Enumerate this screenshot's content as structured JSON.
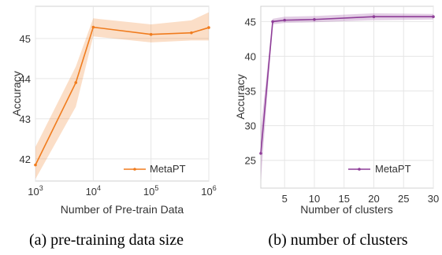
{
  "chart_data": [
    {
      "type": "line",
      "xscale": "log",
      "x": [
        1000,
        5000,
        10000,
        100000,
        500000,
        1000000
      ],
      "series": [
        {
          "name": "MetaPT",
          "color": "#f07c1e",
          "values": [
            41.85,
            43.9,
            45.28,
            45.1,
            45.14,
            45.27
          ],
          "lower": [
            41.5,
            43.3,
            45.05,
            44.9,
            44.95,
            44.95
          ],
          "upper": [
            42.3,
            44.3,
            45.5,
            45.35,
            45.45,
            45.65
          ]
        }
      ],
      "xlabel": "Number of Pre-train Data",
      "ylabel": "Accuracy",
      "xlim": [
        1000,
        1000000
      ],
      "ylim": [
        41.45,
        45.8
      ],
      "xticks": [
        1000,
        10000,
        100000,
        1000000
      ],
      "xtick_labels": [
        [
          "10",
          "3"
        ],
        [
          "10",
          "4"
        ],
        [
          "10",
          "5"
        ],
        [
          "10",
          "6"
        ]
      ],
      "yticks": [
        42,
        43,
        44,
        45
      ],
      "ytick_labels": [
        "42",
        "43",
        "44",
        "45"
      ],
      "grid": true,
      "legend_position": "lower-right",
      "caption": "(a)  pre-training data size"
    },
    {
      "type": "line",
      "x": [
        1,
        3,
        5,
        10,
        20,
        30
      ],
      "series": [
        {
          "name": "MetaPT",
          "color": "#8e3d98",
          "values": [
            26.0,
            45.0,
            45.2,
            45.3,
            45.7,
            45.7
          ],
          "lower": [
            22.0,
            44.6,
            44.8,
            44.9,
            45.2,
            45.3
          ],
          "upper": [
            29.5,
            45.4,
            45.7,
            45.8,
            46.2,
            46.1
          ]
        }
      ],
      "xlabel": "Number of clusters",
      "ylabel": "Accuracy",
      "xlim": [
        1,
        30
      ],
      "ylim": [
        21.0,
        47.2
      ],
      "xticks": [
        5,
        10,
        15,
        20,
        25,
        30
      ],
      "xtick_labels": [
        "5",
        "10",
        "15",
        "20",
        "25",
        "30"
      ],
      "yticks": [
        25,
        30,
        35,
        40,
        45
      ],
      "ytick_labels": [
        "25",
        "30",
        "35",
        "40",
        "45"
      ],
      "grid": true,
      "legend_position": "lower-right",
      "caption": "(b)  number of clusters"
    }
  ]
}
